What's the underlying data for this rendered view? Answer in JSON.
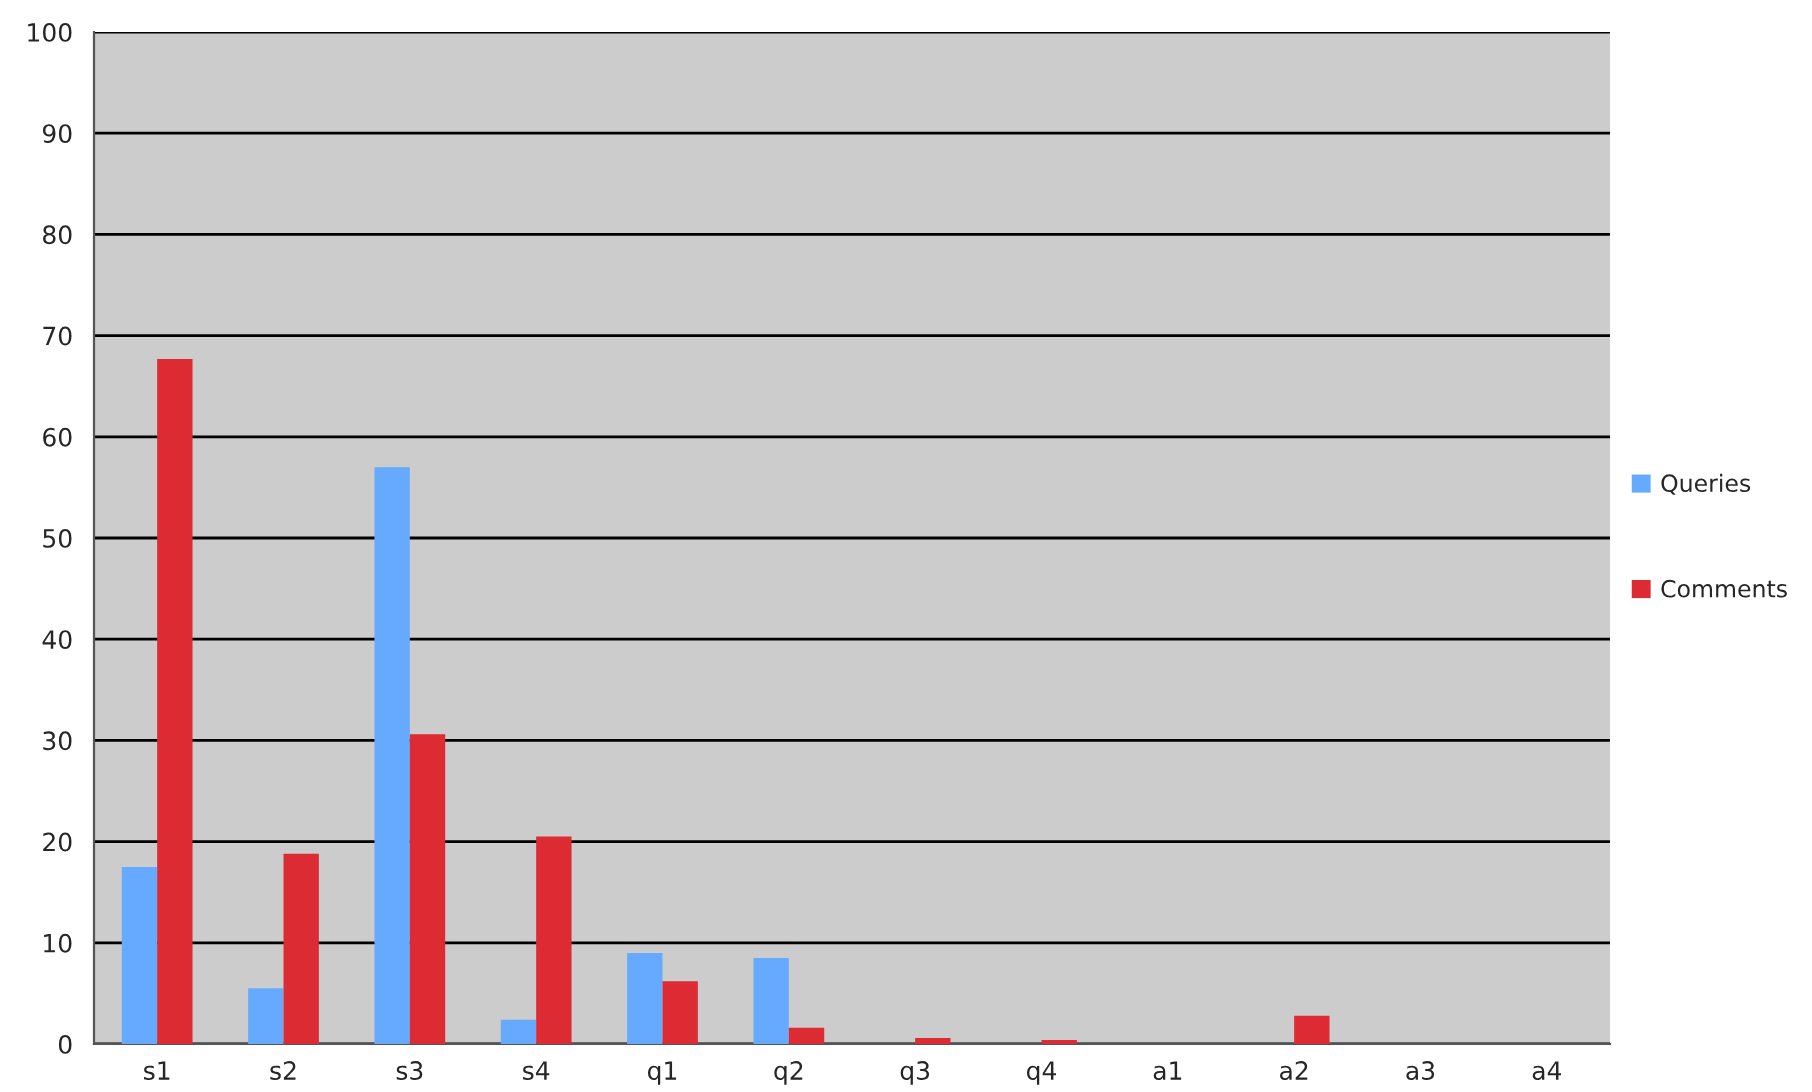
{
  "chart_data": {
    "type": "bar",
    "categories": [
      "s1",
      "s2",
      "s3",
      "s4",
      "q1",
      "q2",
      "q3",
      "q4",
      "a1",
      "a2",
      "a3",
      "a4"
    ],
    "series": [
      {
        "name": "Queries",
        "color": "#66aaff",
        "values": [
          17.5,
          5.5,
          57,
          2.4,
          9,
          8.5,
          0,
          0,
          0,
          0,
          0,
          0
        ]
      },
      {
        "name": "Comments",
        "color": "#dd2b33",
        "values": [
          67.7,
          18.8,
          30.6,
          20.5,
          6.2,
          1.6,
          0.6,
          0.4,
          0,
          2.8,
          0,
          0
        ]
      }
    ],
    "ylim": [
      0,
      100
    ],
    "yticks": [
      0,
      10,
      20,
      30,
      40,
      50,
      60,
      70,
      80,
      90,
      100
    ],
    "grid": "y",
    "legend": "right"
  }
}
